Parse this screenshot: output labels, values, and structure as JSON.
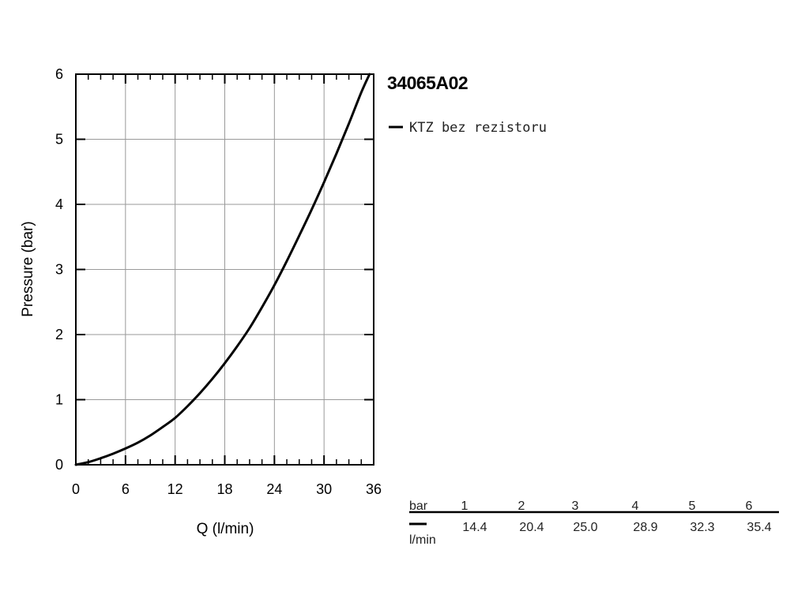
{
  "chart_data": {
    "type": "line",
    "title": "34065A02",
    "xlabel": "Q (l/min)",
    "ylabel": "Pressure (bar)",
    "xlim": [
      0,
      36
    ],
    "ylim": [
      0,
      6
    ],
    "xticks": [
      0,
      6,
      12,
      18,
      24,
      30,
      36
    ],
    "yticks": [
      0,
      1,
      2,
      3,
      4,
      5,
      6
    ],
    "grid": true,
    "legend_position": "top-right",
    "series": [
      {
        "name": "KTZ bez rezistoru",
        "color": "#000000",
        "x": [
          0,
          1.5,
          3,
          4.5,
          6,
          7.5,
          9,
          10.5,
          12,
          13.5,
          15,
          16.5,
          18,
          19.5,
          21,
          22.5,
          24,
          25.5,
          27,
          28.5,
          30,
          31.5,
          33,
          34.5,
          35.5
        ],
        "y": [
          0,
          0.04,
          0.1,
          0.17,
          0.25,
          0.34,
          0.45,
          0.58,
          0.72,
          0.9,
          1.1,
          1.32,
          1.56,
          1.82,
          2.1,
          2.42,
          2.76,
          3.13,
          3.52,
          3.92,
          4.34,
          4.78,
          5.24,
          5.72,
          6.0
        ]
      }
    ]
  },
  "table": {
    "header_label": "bar",
    "row_label": "l/min",
    "pressures": [
      "1",
      "2",
      "3",
      "4",
      "5",
      "6"
    ],
    "flows": [
      "14.4",
      "20.4",
      "25.0",
      "28.9",
      "32.3",
      "35.4"
    ]
  }
}
